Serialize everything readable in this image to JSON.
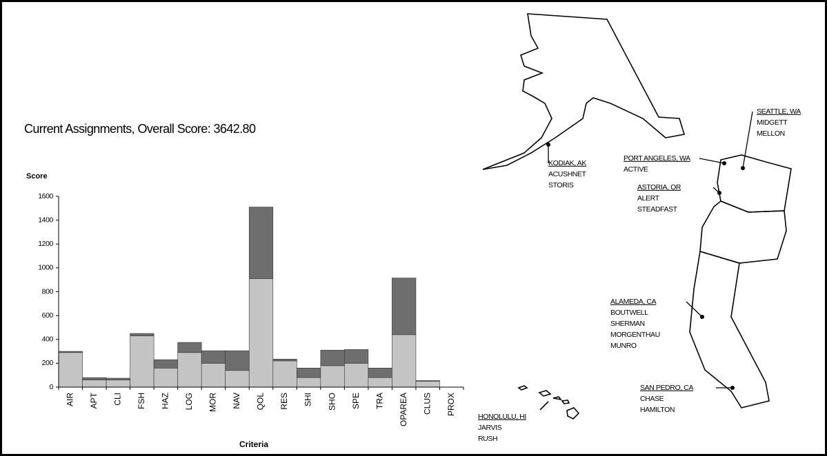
{
  "chart_data": {
    "type": "bar",
    "stacked": true,
    "title": "Current Assignments, Overall Score: 3642.80",
    "y_label": "Score",
    "x_label": "Criteria",
    "categories": [
      "AIR",
      "APT",
      "CLI",
      "FSH",
      "HAZ",
      "LOG",
      "MOR",
      "NAV",
      "QOL",
      "RES",
      "SHI",
      "SHO",
      "SPE",
      "TRA",
      "OPAREA",
      "CLUS",
      "PROX"
    ],
    "series": [
      {
        "color": "#c4c4c4",
        "values": [
          290,
          60,
          60,
          430,
          160,
          290,
          200,
          140,
          910,
          220,
          80,
          180,
          200,
          80,
          440,
          50,
          0
        ]
      },
      {
        "color": "#6e6e6e",
        "values": [
          10,
          20,
          15,
          20,
          70,
          85,
          105,
          165,
          600,
          15,
          80,
          130,
          115,
          80,
          475,
          5,
          0
        ]
      }
    ],
    "ylim": [
      0,
      1600
    ],
    "yticks": [
      0,
      200,
      400,
      600,
      800,
      1000,
      1200,
      1400,
      1600
    ],
    "grid": false
  },
  "map": {
    "locations": [
      {
        "name": "KODIAK, AK",
        "ships": [
          "ACUSHNET",
          "STORIS"
        ]
      },
      {
        "name": "SEATTLE, WA",
        "ships": [
          "MIDGETT",
          "MELLON"
        ]
      },
      {
        "name": "PORT ANGELES, WA",
        "ships": [
          "ACTIVE"
        ]
      },
      {
        "name": "ASTORIA, OR",
        "ships": [
          "ALERT",
          "STEADFAST"
        ]
      },
      {
        "name": "ALAMEDA, CA",
        "ships": [
          "BOUTWELL",
          "SHERMAN",
          "MORGENTHAU",
          "MUNRO"
        ]
      },
      {
        "name": "SAN PEDRO, CA",
        "ships": [
          "CHASE",
          "HAMILTON"
        ]
      },
      {
        "name": "HONOLULU, HI",
        "ships": [
          "JARVIS",
          "RUSH"
        ]
      }
    ]
  }
}
